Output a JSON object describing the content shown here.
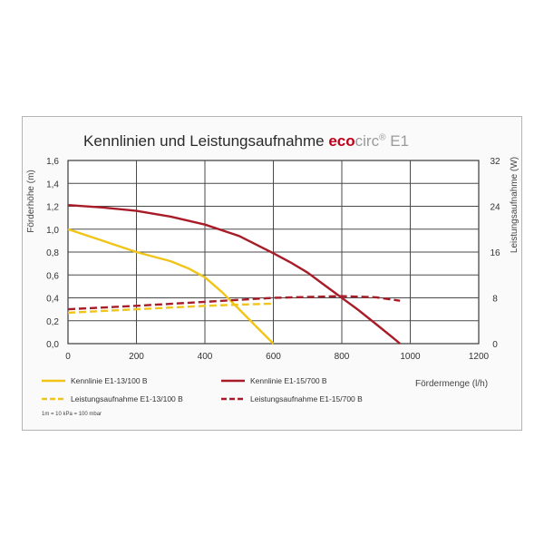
{
  "title": {
    "main": "Kennlinien und Leistungsaufnahme",
    "brand_eco": "eco",
    "brand_circ": "circ",
    "brand_reg": "®",
    "model": "E1"
  },
  "chart_data": {
    "type": "line",
    "xlabel": "Fördermenge (l/h)",
    "ylabel_left": "Förderhöhe (m)",
    "ylabel_right": "Leistungsaufnahme (W)",
    "xlim": [
      0,
      1200
    ],
    "ylim_left": [
      0,
      1.6
    ],
    "ylim_right": [
      0,
      32
    ],
    "x_ticks": [
      "0",
      "200",
      "400",
      "600",
      "800",
      "1000",
      "1200"
    ],
    "y_left_ticks": [
      "0,0",
      "0,2",
      "0,4",
      "0,6",
      "0,8",
      "1,0",
      "1,2",
      "1,4",
      "1,6"
    ],
    "y_right_ticks": [
      "0",
      "8",
      "16",
      "24",
      "32"
    ],
    "grid": true,
    "legend_position": "bottom",
    "note": "1m = 10 kPa = 100 mbar",
    "series": [
      {
        "name": "Kennlinie E1-13/100 B",
        "axis": "left",
        "style": "solid",
        "color": "#f0c418",
        "x": [
          0,
          100,
          200,
          300,
          350,
          400,
          450,
          500,
          550,
          600
        ],
        "y": [
          1.0,
          0.9,
          0.8,
          0.72,
          0.66,
          0.58,
          0.45,
          0.3,
          0.15,
          0.0
        ]
      },
      {
        "name": "Kennlinie E1-15/700 B",
        "axis": "left",
        "style": "solid",
        "color": "#a81c28",
        "x": [
          0,
          100,
          200,
          300,
          400,
          500,
          600,
          650,
          700,
          750,
          800,
          850,
          900,
          950,
          970
        ],
        "y": [
          1.21,
          1.19,
          1.16,
          1.11,
          1.04,
          0.94,
          0.79,
          0.71,
          0.62,
          0.51,
          0.4,
          0.29,
          0.17,
          0.05,
          0.0
        ]
      },
      {
        "name": "Leistungsaufnahme E1-13/100 B",
        "axis": "right",
        "style": "dashed",
        "color": "#f0c418",
        "x": [
          0,
          200,
          400,
          600
        ],
        "y": [
          5.4,
          6.0,
          6.6,
          7.0
        ]
      },
      {
        "name": "Leistungsaufnahme E1-15/700 B",
        "axis": "right",
        "style": "dashed",
        "color": "#a81c28",
        "x": [
          0,
          200,
          400,
          600,
          800,
          900,
          970
        ],
        "y": [
          6.0,
          6.6,
          7.3,
          8.0,
          8.3,
          8.1,
          7.5
        ]
      }
    ]
  }
}
